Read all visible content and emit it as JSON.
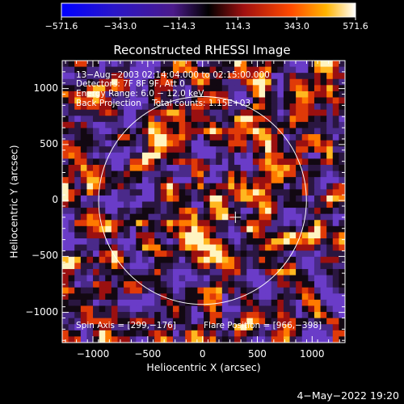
{
  "colorbar": {
    "tick_labels": [
      "−571.6",
      "−343.0",
      "−114.3",
      "114.3",
      "343.0",
      "571.6"
    ],
    "min": -571.6,
    "max": 571.6
  },
  "chart_data": {
    "type": "heatmap",
    "title": "Reconstructed RHESSI Image",
    "xlabel": "Heliocentric X (arcsec)",
    "ylabel": "Heliocentric Y (arcsec)",
    "xlim": [
      -1280,
      1300
    ],
    "ylim": [
      -1270,
      1250
    ],
    "x_ticks": [
      -1000,
      -500,
      0,
      500,
      1000
    ],
    "x_tick_labels": [
      "−1000",
      "−500",
      "0",
      "500",
      "1000"
    ],
    "y_ticks": [
      1000,
      500,
      0,
      -500,
      -1000
    ],
    "y_tick_labels": [
      "1000",
      "500",
      "0",
      "−500",
      "−1000"
    ],
    "colormap": "rhessi",
    "solar_limb_radius_arcsec": 948,
    "solar_center": [
      0,
      0
    ],
    "flare_marker": [
      300,
      -150
    ],
    "annotations": {
      "time_range": "13−Aug−2003 02:14:04.000 to 02:15:00.000",
      "detectors": "Detectors: 7F 8F 9F, Att 0",
      "energy_range": "Energy Range: 6.0 − 12.0 keV",
      "method_counts": "Back Projection    Total counts: 1.15E+03",
      "spin_axis": "Spin Axis = [299,−176]",
      "flare_position": "Flare Position = [966,−398]"
    }
  },
  "footer_date": "4−May−2022 19:20"
}
